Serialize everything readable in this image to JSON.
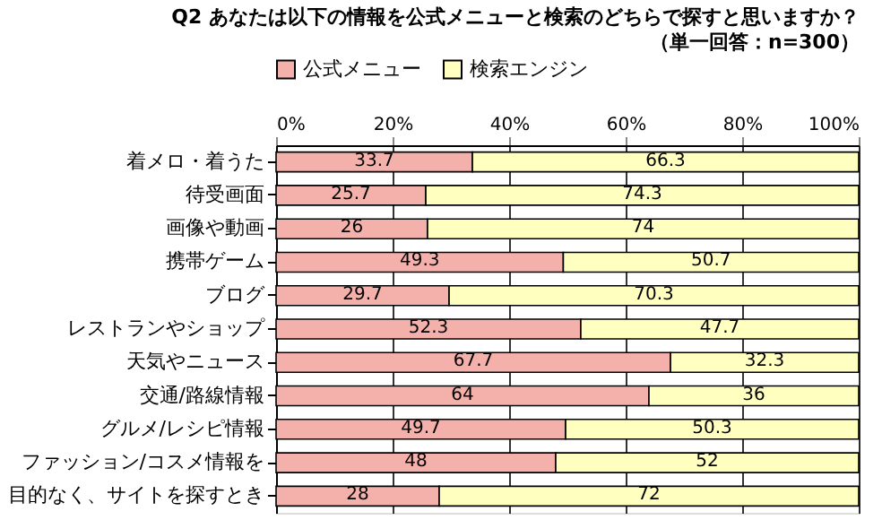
{
  "chart_data": {
    "type": "bar",
    "orientation": "horizontal",
    "stacked": true,
    "title": "Q2 あなたは以下の情報を公式メニューと検索のどちらで探すと思いますか？",
    "subtitle": "（単一回答：n=300）",
    "categories": [
      "着メロ・着うた",
      "待受画面",
      "画像や動画",
      "携帯ゲーム",
      "ブログ",
      "レストランやショップ",
      "天気やニュース",
      "交通/路線情報",
      "グルメ/レシピ情報",
      "ファッション/コスメ情報を",
      "目的なく、サイトを探すとき"
    ],
    "series": [
      {
        "name": "公式メニュー",
        "color": "#f4b0aa",
        "values": [
          33.7,
          25.7,
          26,
          49.3,
          29.7,
          52.3,
          67.7,
          64,
          49.7,
          48,
          28
        ]
      },
      {
        "name": "検索エンジン",
        "color": "#ffffc0",
        "values": [
          66.3,
          74.3,
          74,
          50.7,
          70.3,
          47.7,
          32.3,
          36,
          50.3,
          52,
          72
        ]
      }
    ],
    "xlim": [
      0,
      100
    ],
    "xticks": [
      {
        "value": 0,
        "label": "0%"
      },
      {
        "value": 20,
        "label": "20%"
      },
      {
        "value": 40,
        "label": "40%"
      },
      {
        "value": 60,
        "label": "60%"
      },
      {
        "value": 80,
        "label": "80%"
      },
      {
        "value": 100,
        "label": "100%"
      }
    ],
    "data_labels": true,
    "grid": "x",
    "legend": "top"
  }
}
